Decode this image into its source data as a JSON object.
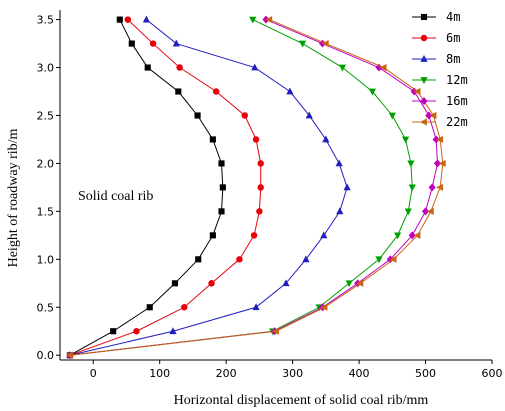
{
  "chart_data": {
    "type": "line",
    "title": "",
    "xlabel": "Horizontal displacement of solid coal rib/mm",
    "ylabel": "Height of roadway rib/m",
    "xlim": [
      -50,
      600
    ],
    "ylim": [
      -0.05,
      3.6
    ],
    "x_ticks": [
      0,
      100,
      200,
      300,
      400,
      500,
      600
    ],
    "y_ticks": [
      0.0,
      0.5,
      1.0,
      1.5,
      2.0,
      2.5,
      3.0,
      3.5
    ],
    "annotation": "Solid coal rib",
    "legend_position": "top-right",
    "grid": false,
    "y": [
      0.0,
      0.25,
      0.5,
      0.75,
      1.0,
      1.25,
      1.5,
      1.75,
      2.0,
      2.25,
      2.5,
      2.75,
      3.0,
      3.25,
      3.5
    ],
    "series": [
      {
        "name": "4m",
        "color": "#000000",
        "marker": "square",
        "x": [
          -35,
          30,
          85,
          123,
          158,
          180,
          193,
          195,
          193,
          180,
          157,
          128,
          82,
          58,
          40
        ]
      },
      {
        "name": "6m",
        "color": "#e8000b",
        "marker": "circle",
        "x": [
          -35,
          65,
          137,
          178,
          220,
          242,
          250,
          252,
          252,
          245,
          228,
          185,
          130,
          90,
          52
        ]
      },
      {
        "name": "8m",
        "color": "#1f1fbf",
        "marker": "triangle-up",
        "x": [
          -35,
          120,
          245,
          290,
          320,
          347,
          371,
          382,
          370,
          350,
          325,
          296,
          243,
          125,
          80
        ]
      },
      {
        "name": "12m",
        "color": "#00a000",
        "marker": "triangle-down",
        "x": [
          -35,
          270,
          340,
          385,
          430,
          458,
          474,
          480,
          478,
          470,
          450,
          420,
          375,
          315,
          240
        ]
      },
      {
        "name": "16m",
        "color": "#c000c0",
        "marker": "diamond",
        "x": [
          -35,
          273,
          345,
          398,
          447,
          480,
          500,
          510,
          518,
          516,
          505,
          483,
          430,
          345,
          260
        ]
      },
      {
        "name": "22m",
        "color": "#c86414",
        "marker": "triangle-left",
        "x": [
          -35,
          275,
          348,
          402,
          452,
          488,
          508,
          522,
          526,
          522,
          512,
          488,
          437,
          350,
          265
        ]
      }
    ]
  }
}
